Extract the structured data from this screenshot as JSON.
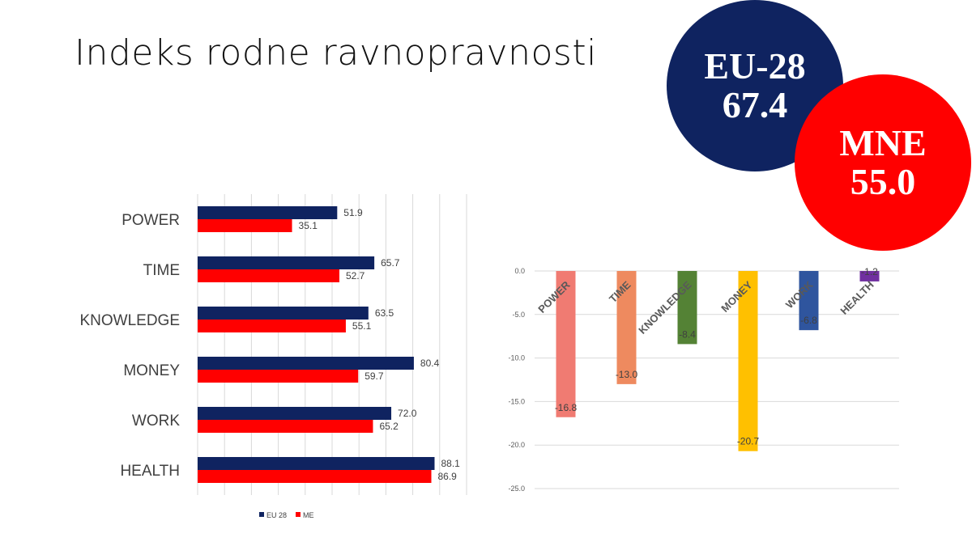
{
  "slide": {
    "title": "Indeks rodne ravnopravnosti"
  },
  "badges": {
    "eu": {
      "label": "EU-28",
      "value": "67.4",
      "color": "#0f2360"
    },
    "mne": {
      "label": "MNE",
      "value": "55.0",
      "color": "#ff0000"
    }
  },
  "chart_data": [
    {
      "type": "bar",
      "orientation": "horizontal",
      "categories": [
        "POWER",
        "TIME",
        "KNOWLEDGE",
        "MONEY",
        "WORK",
        "HEALTH"
      ],
      "series": [
        {
          "name": "EU 28",
          "color": "#0f2360",
          "values": [
            51.9,
            65.7,
            63.5,
            80.4,
            72.0,
            88.1
          ]
        },
        {
          "name": "ME",
          "color": "#ff0000",
          "values": [
            35.1,
            52.7,
            55.1,
            59.7,
            65.2,
            86.9
          ]
        }
      ],
      "xlim": [
        0,
        100
      ],
      "grid": true,
      "legend": "bottom"
    },
    {
      "type": "bar",
      "orientation": "vertical",
      "categories": [
        "POWER",
        "TIME",
        "KNOWLEDGE",
        "MONEY",
        "WORK",
        "HEALTH"
      ],
      "values": [
        -16.8,
        -13.0,
        -8.4,
        -20.7,
        -6.8,
        -1.2
      ],
      "colors": [
        "#f07b72",
        "#ee8a5f",
        "#548235",
        "#ffc000",
        "#2f559e",
        "#7030a0"
      ],
      "yticks": [
        "0.0",
        "-5.0",
        "-10.0",
        "-15.0",
        "-20.0",
        "-25.0"
      ],
      "ylim": [
        -25,
        0
      ],
      "grid": true
    }
  ]
}
